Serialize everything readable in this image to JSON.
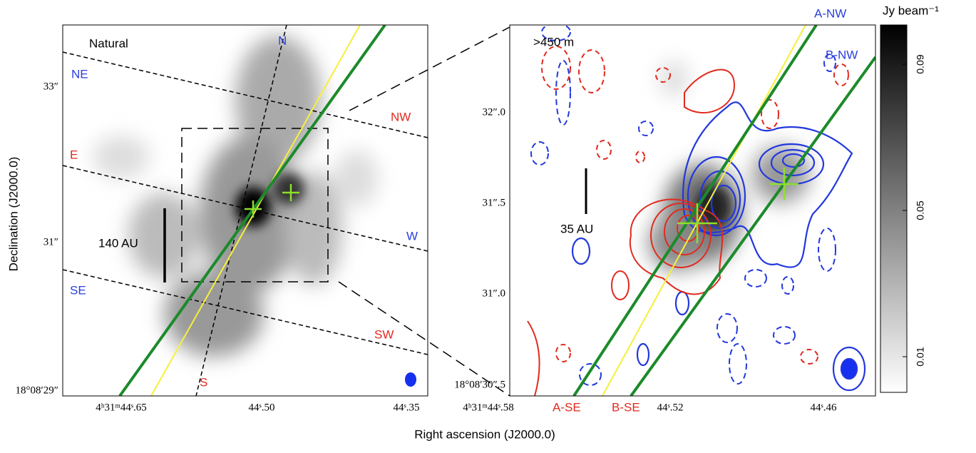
{
  "figure": {
    "x_label": "Right ascension (J2000.0)",
    "y_label": "Declination (J2000.0)",
    "left_panel": {
      "title": "Natural",
      "direction_labels": [
        "N",
        "NE",
        "NW",
        "E",
        "W",
        "SE",
        "SW",
        "S"
      ],
      "scale_bar": "140 AU",
      "y_ticks": [
        "33″",
        "31″",
        "18°08′29″"
      ],
      "x_ticks": [
        "4ʰ31ᵐ44ˢ.65",
        "44ˢ.50",
        "44ˢ.35"
      ]
    },
    "right_panel": {
      "title": ">450 m",
      "direction_labels": [
        "A-NW",
        "B-NW",
        "A-SE",
        "B-SE"
      ],
      "scale_bar": "35 AU",
      "y_ticks": [
        "32″.0",
        "31″.5",
        "31″.0",
        "18°08′30″.5"
      ],
      "x_ticks": [
        "4ʰ31ᵐ44ˢ.58",
        "44ˢ.52",
        "44ˢ.46"
      ]
    },
    "colorbar": {
      "label": "Jy beam⁻¹",
      "ticks": [
        0.01,
        0.05,
        0.09
      ]
    }
  }
}
